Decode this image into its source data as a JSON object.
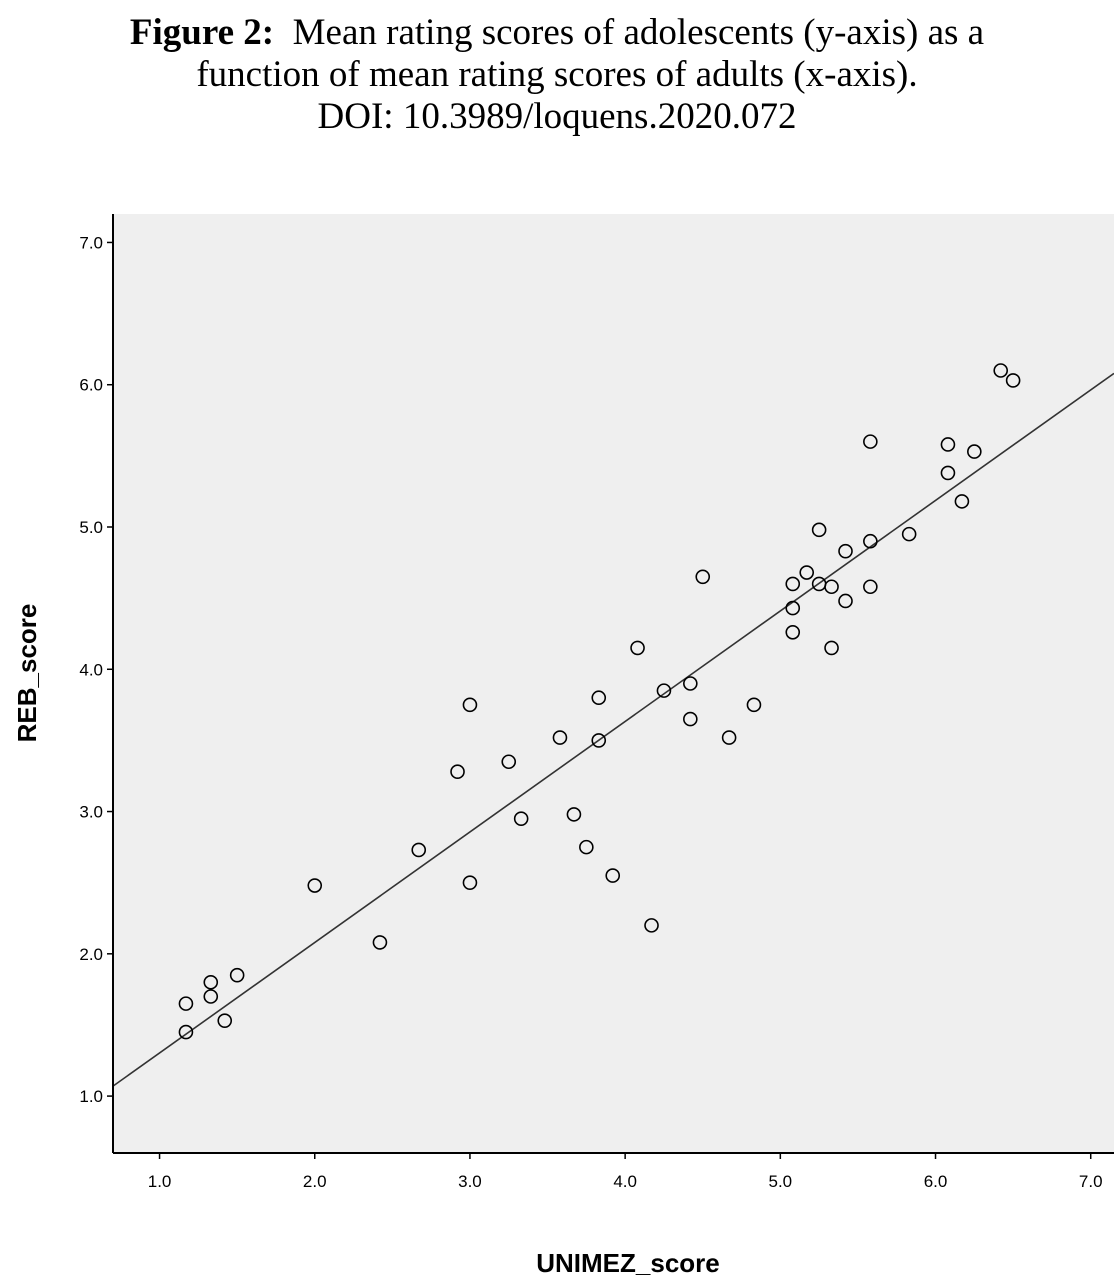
{
  "figure": {
    "label": "Figure 2:",
    "caption_line1": "Mean rating scores of adolescents (y-axis) as a",
    "caption_line2": "function of mean rating scores of adults (x-axis).",
    "doi": "DOI: 10.3989/loquens.2020.072"
  },
  "chart_data": {
    "type": "scatter",
    "title": "",
    "xlabel": "UNIMEZ_score",
    "ylabel": "REB_score",
    "xlim": [
      0.7,
      7.15
    ],
    "ylim": [
      0.6,
      7.2
    ],
    "xticks": [
      "1.0",
      "2.0",
      "3.0",
      "4.0",
      "5.0",
      "6.0",
      "7.0"
    ],
    "yticks": [
      "1.0",
      "2.0",
      "3.0",
      "4.0",
      "5.0",
      "6.0",
      "7.0"
    ],
    "grid": false,
    "background": "#efefef",
    "points": [
      [
        1.17,
        1.65
      ],
      [
        1.17,
        1.45
      ],
      [
        1.33,
        1.8
      ],
      [
        1.33,
        1.7
      ],
      [
        1.42,
        1.53
      ],
      [
        1.5,
        1.85
      ],
      [
        2.0,
        2.48
      ],
      [
        2.42,
        2.08
      ],
      [
        2.67,
        2.73
      ],
      [
        2.92,
        3.28
      ],
      [
        3.0,
        3.75
      ],
      [
        3.0,
        2.5
      ],
      [
        3.25,
        3.35
      ],
      [
        3.33,
        2.95
      ],
      [
        3.58,
        3.52
      ],
      [
        3.67,
        2.98
      ],
      [
        3.75,
        2.75
      ],
      [
        3.83,
        3.8
      ],
      [
        3.83,
        3.5
      ],
      [
        3.92,
        2.55
      ],
      [
        4.08,
        4.15
      ],
      [
        4.17,
        2.2
      ],
      [
        4.25,
        3.85
      ],
      [
        4.42,
        3.9
      ],
      [
        4.42,
        3.65
      ],
      [
        4.5,
        4.65
      ],
      [
        4.67,
        3.52
      ],
      [
        4.83,
        3.75
      ],
      [
        5.08,
        4.6
      ],
      [
        5.08,
        4.43
      ],
      [
        5.08,
        4.26
      ],
      [
        5.17,
        4.68
      ],
      [
        5.25,
        4.98
      ],
      [
        5.25,
        4.6
      ],
      [
        5.33,
        4.58
      ],
      [
        5.33,
        4.15
      ],
      [
        5.42,
        4.83
      ],
      [
        5.42,
        4.48
      ],
      [
        5.58,
        5.6
      ],
      [
        5.58,
        4.9
      ],
      [
        5.58,
        4.58
      ],
      [
        5.83,
        4.95
      ],
      [
        6.08,
        5.58
      ],
      [
        6.08,
        5.38
      ],
      [
        6.17,
        5.18
      ],
      [
        6.25,
        5.53
      ],
      [
        6.42,
        6.1
      ],
      [
        6.5,
        6.03
      ]
    ],
    "fit_line": {
      "x": [
        0.7,
        7.15
      ],
      "y": [
        1.07,
        6.08
      ]
    }
  }
}
